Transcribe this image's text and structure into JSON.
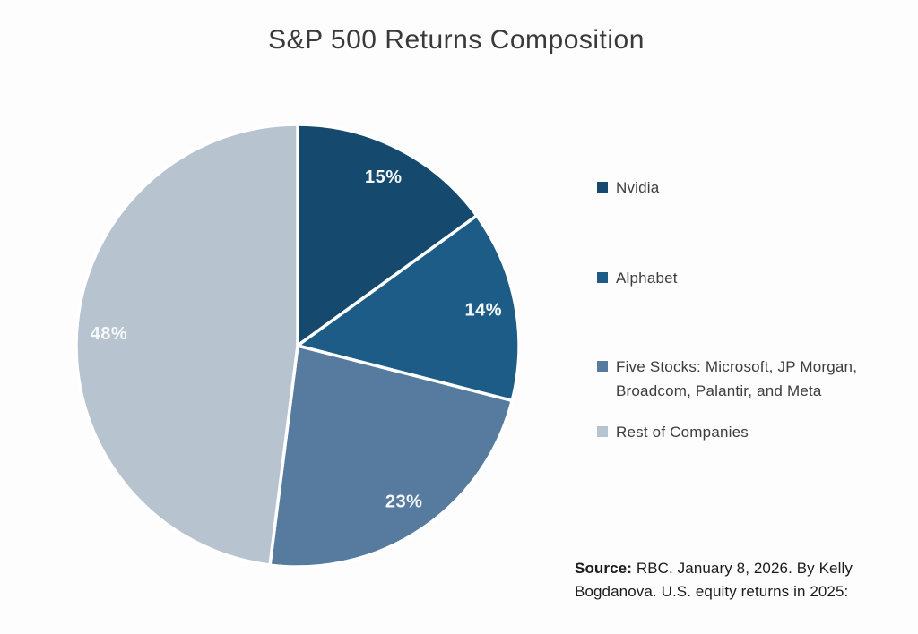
{
  "chart_data": {
    "type": "pie",
    "title": "S&P 500 Returns Composition",
    "direction": "clockwise",
    "start_angle_deg": 0,
    "legend_position": "right",
    "label_color": "#ffffff",
    "slices": [
      {
        "label": "Nvidia",
        "value": 15,
        "value_label": "15%",
        "color": "#154a6e"
      },
      {
        "label": "Alphabet",
        "value": 14,
        "value_label": "14%",
        "color": "#1d5c87"
      },
      {
        "label": "Five Stocks: Microsoft, JP Morgan, Broadcom, Palantir, and Meta",
        "value": 23,
        "value_label": "23%",
        "color": "#567b9f"
      },
      {
        "label": "Rest of Companies",
        "value": 48,
        "value_label": "48%",
        "color": "#b7c3cf"
      }
    ]
  },
  "source": {
    "label": "Source:",
    "text": "RBC. January 8, 2026. By Kelly Bogdanova. U.S. equity returns in 2025:"
  }
}
